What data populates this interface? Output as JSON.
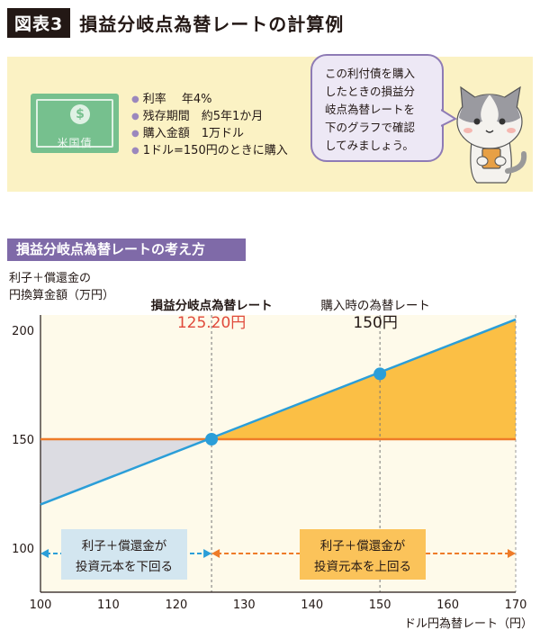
{
  "header": {
    "badge": "図表3",
    "title": "損益分岐点為替レートの計算例"
  },
  "bond_icon": {
    "symbol": "$",
    "label": "米国債"
  },
  "info_items": [
    "利率　 年4%",
    "残存期間　約5年1か月",
    "購入金額　1万ドル",
    "1ドル=150円のときに購入"
  ],
  "bubble_lines": [
    "この利付債を購入",
    "したときの損益分",
    "岐点為替レートを",
    "下のグラフで確認",
    "してみましょう。"
  ],
  "section_title": "損益分岐点為替レートの考え方",
  "y_axis_label": [
    "利子＋償還金の",
    "円換算金額（万円）"
  ],
  "x_axis_label": "ドル円為替レート（円）",
  "colors": {
    "line_blue": "#2b9ed8",
    "line_orange": "#ee7b28",
    "fill_gray": "#dcdce2",
    "fill_orange": "#fbbf45",
    "bg_cream": "#fefaea",
    "accent_red": "#e04a3c",
    "label_blue_bg": "#d3e6f0",
    "label_orange_bg": "#fbc35a"
  },
  "chart_data": {
    "type": "line",
    "xlim": [
      100,
      170
    ],
    "ylim": [
      100,
      200
    ],
    "x_ticks": [
      100,
      110,
      120,
      130,
      140,
      150,
      160,
      170
    ],
    "y_ticks": [
      100,
      150,
      200
    ],
    "series": [
      {
        "name": "",
        "points": [
          [
            100,
            120
          ],
          [
            170,
            205
          ]
        ]
      },
      {
        "name": "",
        "points": [
          [
            100,
            150
          ],
          [
            170,
            150
          ]
        ]
      }
    ],
    "key_points": [
      {
        "x": 125.2,
        "y": 150
      },
      {
        "x": 150,
        "y": 180
      }
    ],
    "annotations": [
      {
        "x": 125.2,
        "title": "損益分岐点為替レート",
        "value": "125.20円"
      },
      {
        "x": 150,
        "title": "購入時の為替レート",
        "value": "150円"
      }
    ],
    "region_labels": [
      {
        "text_lines": [
          "利子＋償還金が",
          "投資元本を下回る"
        ],
        "from": 100,
        "to": 125.2
      },
      {
        "text_lines": [
          "利子＋償還金が",
          "投資元本を上回る"
        ],
        "from": 125.2,
        "to": 170
      }
    ]
  }
}
